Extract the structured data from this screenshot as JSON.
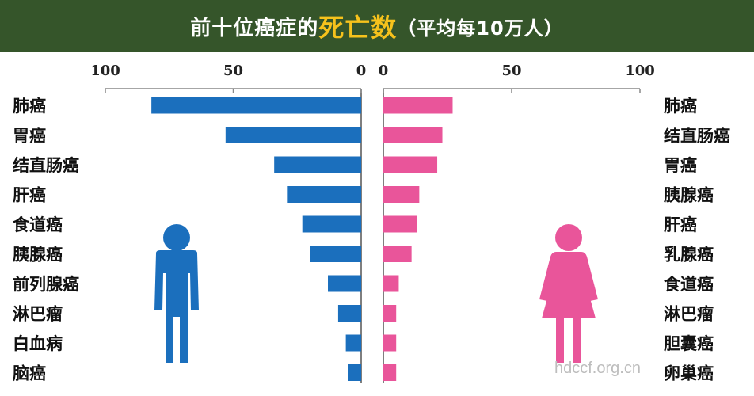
{
  "title": {
    "prefix": "前十位癌症的",
    "highlight": "死亡数",
    "suffix": "（平均每10万人）"
  },
  "watermark": "hdccf.org.cn",
  "colors": {
    "banner": "#35552a",
    "highlight": "#f6c21c",
    "male": "#1b6fbd",
    "female": "#e9559a"
  },
  "icons": {
    "male": "man-icon",
    "female": "woman-icon"
  },
  "chart_data": [
    {
      "type": "bar",
      "orientation": "horizontal",
      "direction": "right-to-left",
      "xlim": [
        0,
        100
      ],
      "ticks": [
        100,
        50,
        0
      ],
      "categories": [
        "肺癌",
        "胃癌",
        "结直肠癌",
        "肝癌",
        "食道癌",
        "胰腺癌",
        "前列腺癌",
        "淋巴瘤",
        "白血病",
        "脑癌"
      ],
      "values": [
        82,
        53,
        34,
        29,
        23,
        20,
        13,
        9,
        6,
        5
      ]
    },
    {
      "type": "bar",
      "orientation": "horizontal",
      "direction": "left-to-right",
      "xlim": [
        0,
        100
      ],
      "ticks": [
        0,
        50,
        100
      ],
      "categories": [
        "肺癌",
        "结直肠癌",
        "胃癌",
        "胰腺癌",
        "肝癌",
        "乳腺癌",
        "食道癌",
        "淋巴瘤",
        "胆囊癌",
        "卵巢癌"
      ],
      "values": [
        27,
        23,
        21,
        14,
        13,
        11,
        6,
        5,
        5,
        5
      ]
    }
  ]
}
